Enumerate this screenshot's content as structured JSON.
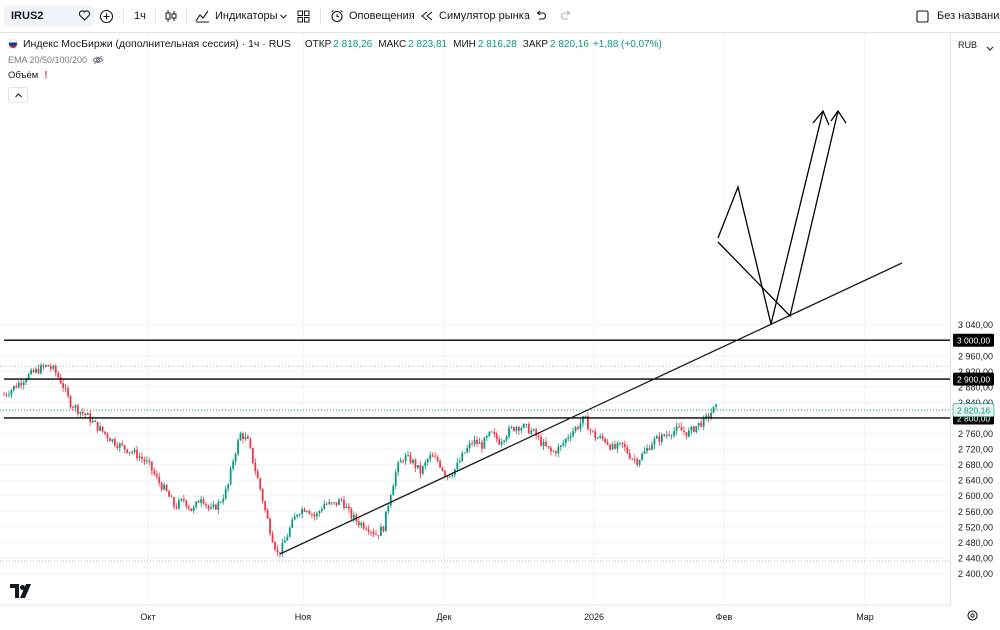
{
  "toolbar": {
    "symbol": "IRUS2",
    "interval": "1ч",
    "indicators_label": "Индикаторы",
    "alerts_label": "Оповещения",
    "replay_label": "Симулятор рынка",
    "layout_name": "Без названия"
  },
  "legend": {
    "title": "Индекс МосБиржи (дополнительная сессия) · 1ч · RUS",
    "open_label": "ОТКР",
    "open": "2 818,26",
    "high_label": "МАКС",
    "high": "2 823,81",
    "low_label": "МИН",
    "low": "2 816,28",
    "close_label": "ЗАКР",
    "close": "2 820,16",
    "change": "+1,88 (+0,07%)",
    "ema_label": "EMA 20/50/100/200",
    "volume_label": "Объём"
  },
  "currency": "RUB",
  "colors": {
    "up": "#089981",
    "down": "#f23645",
    "grid": "#f0f3fa",
    "level": "#000000",
    "current_price": "#089981"
  },
  "chart_data": {
    "type": "candlestick",
    "y_ticks": [
      "2 400,00",
      "2 440,00",
      "2 480,00",
      "2 520,00",
      "2 560,00",
      "2 600,00",
      "2 640,00",
      "2 680,00",
      "2 720,00",
      "2 760,00",
      "2 800,00",
      "2 840,00",
      "2 880,00",
      "2 920,00",
      "2 960,00",
      "3 000,00",
      "3 040,00"
    ],
    "ylim": [
      2380,
      3070
    ],
    "x_ticks": [
      "Окт",
      "Ноя",
      "Дек",
      "2026",
      "Фев",
      "Мар"
    ],
    "levels": [
      {
        "price": 3000,
        "label": "3 000,00"
      },
      {
        "price": 2900,
        "label": "2 900,00"
      },
      {
        "price": 2800,
        "label": "2 800,00"
      }
    ],
    "current_price": {
      "price": 2820.16,
      "label": "2 820,16"
    },
    "dotted_levels": [
      2933,
      2432
    ],
    "price_path": [
      [
        0,
        2860
      ],
      [
        0.012,
        2880
      ],
      [
        0.025,
        2905
      ],
      [
        0.04,
        2925
      ],
      [
        0.05,
        2935
      ],
      [
        0.058,
        2920
      ],
      [
        0.066,
        2890
      ],
      [
        0.075,
        2840
      ],
      [
        0.085,
        2820
      ],
      [
        0.095,
        2805
      ],
      [
        0.105,
        2780
      ],
      [
        0.115,
        2760
      ],
      [
        0.125,
        2740
      ],
      [
        0.135,
        2725
      ],
      [
        0.145,
        2715
      ],
      [
        0.155,
        2700
      ],
      [
        0.165,
        2680
      ],
      [
        0.175,
        2640
      ],
      [
        0.185,
        2610
      ],
      [
        0.195,
        2570
      ],
      [
        0.205,
        2590
      ],
      [
        0.215,
        2560
      ],
      [
        0.225,
        2600
      ],
      [
        0.235,
        2560
      ],
      [
        0.245,
        2580
      ],
      [
        0.255,
        2620
      ],
      [
        0.262,
        2700
      ],
      [
        0.27,
        2760
      ],
      [
        0.278,
        2740
      ],
      [
        0.285,
        2680
      ],
      [
        0.292,
        2620
      ],
      [
        0.298,
        2560
      ],
      [
        0.305,
        2500
      ],
      [
        0.312,
        2450
      ],
      [
        0.318,
        2470
      ],
      [
        0.325,
        2510
      ],
      [
        0.335,
        2560
      ],
      [
        0.345,
        2570
      ],
      [
        0.355,
        2545
      ],
      [
        0.365,
        2580
      ],
      [
        0.375,
        2575
      ],
      [
        0.385,
        2590
      ],
      [
        0.395,
        2550
      ],
      [
        0.405,
        2530
      ],
      [
        0.415,
        2520
      ],
      [
        0.425,
        2500
      ],
      [
        0.433,
        2520
      ],
      [
        0.44,
        2600
      ],
      [
        0.448,
        2670
      ],
      [
        0.456,
        2700
      ],
      [
        0.465,
        2690
      ],
      [
        0.475,
        2660
      ],
      [
        0.485,
        2700
      ],
      [
        0.495,
        2690
      ],
      [
        0.505,
        2650
      ],
      [
        0.515,
        2670
      ],
      [
        0.525,
        2710
      ],
      [
        0.535,
        2740
      ],
      [
        0.545,
        2730
      ],
      [
        0.555,
        2760
      ],
      [
        0.565,
        2740
      ],
      [
        0.575,
        2765
      ],
      [
        0.585,
        2780
      ],
      [
        0.595,
        2775
      ],
      [
        0.605,
        2760
      ],
      [
        0.615,
        2730
      ],
      [
        0.625,
        2710
      ],
      [
        0.635,
        2725
      ],
      [
        0.645,
        2760
      ],
      [
        0.655,
        2780
      ],
      [
        0.662,
        2800
      ],
      [
        0.668,
        2770
      ],
      [
        0.675,
        2750
      ],
      [
        0.685,
        2745
      ],
      [
        0.695,
        2720
      ],
      [
        0.705,
        2730
      ],
      [
        0.715,
        2700
      ],
      [
        0.722,
        2690
      ],
      [
        0.73,
        2710
      ],
      [
        0.74,
        2740
      ],
      [
        0.75,
        2750
      ],
      [
        0.76,
        2765
      ],
      [
        0.77,
        2770
      ],
      [
        0.78,
        2760
      ],
      [
        0.79,
        2780
      ],
      [
        0.8,
        2795
      ],
      [
        0.808,
        2820
      ],
      [
        0.812,
        2825
      ]
    ]
  }
}
